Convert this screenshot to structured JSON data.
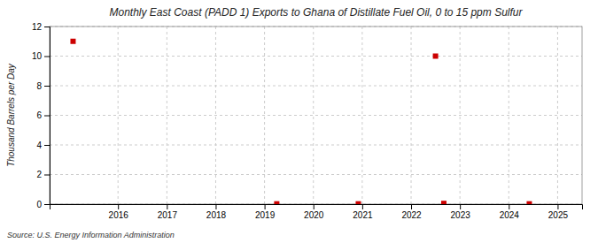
{
  "chart_data": {
    "type": "scatter",
    "title": "Monthly East Coast (PADD 1) Exports to Ghana of Distillate Fuel Oil, 0 to 15 ppm Sulfur",
    "y_label": "Thousand Barrels per Day",
    "annotation": "Source: U.S. Energy Information Administration",
    "x": [
      2015.08,
      2019.25,
      2020.92,
      2022.5,
      2022.67,
      2024.42
    ],
    "values": [
      11.0,
      0.02,
      0.02,
      10.0,
      0.05,
      0.02
    ],
    "color": "#cc0000",
    "marker": "square",
    "xlim": [
      2014.6,
      2025.5
    ],
    "ylim": [
      0,
      12
    ],
    "xticks": [
      2016,
      2017,
      2018,
      2019,
      2020,
      2021,
      2022,
      2023,
      2024,
      2025
    ],
    "yticks": [
      0,
      2,
      4,
      6,
      8,
      10,
      12
    ],
    "grid": true
  }
}
